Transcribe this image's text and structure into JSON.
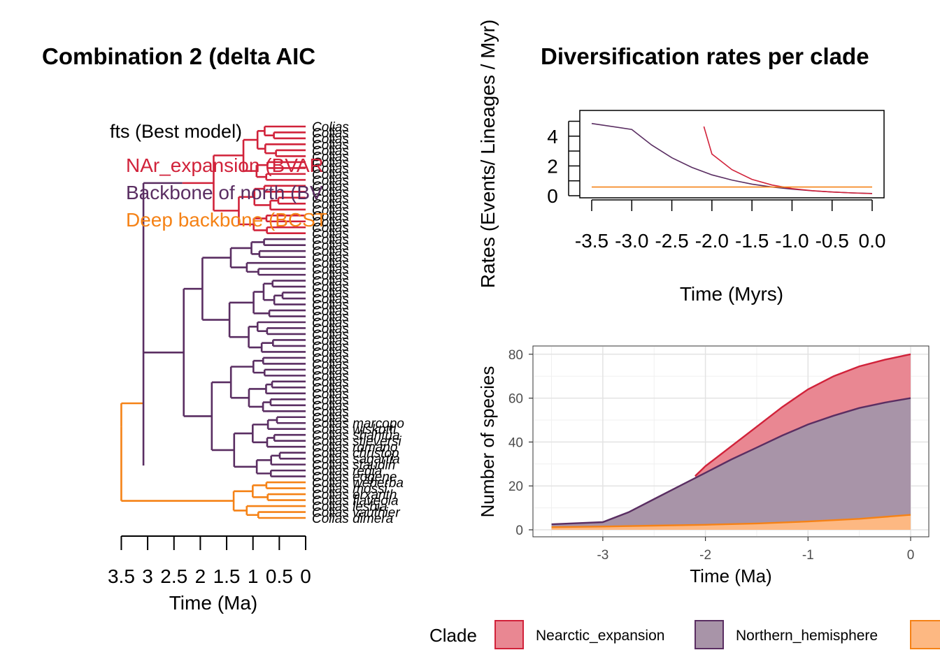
{
  "colors": {
    "nearctic": "#d1223a",
    "northern": "#5a2e62",
    "deep": "#f58216",
    "nearctic_fill": "#e98792",
    "northern_fill": "#a894a8",
    "deep_fill": "#fdb882"
  },
  "left_panel": {
    "title": "Combination 2 (delta AIC",
    "legend_header": "fts (Best model)",
    "legend_items": [
      {
        "label": "NAr_expansion (BVAR",
        "color": "#d1223a"
      },
      {
        "label": "Backbone of north (BV",
        "color": "#5a2e62"
      },
      {
        "label": "Deep backbone (BCST",
        "color": "#f58216"
      }
    ],
    "xlabel": "Time (Ma)",
    "ticks": [
      "3.5",
      "3",
      "2.5",
      "2",
      "1.5",
      "1",
      "0.5",
      "0"
    ],
    "tip_label": "Colias",
    "visible_tip_names": [
      "Colias marcopo",
      "Colias wiskotti",
      "Colias shahfua",
      "Colias stieversi",
      "Colias romano",
      "Colias christop",
      "Colias sagartia",
      "Colias staudin",
      "Colias regia",
      "Colias eogene",
      "Colias weberba",
      "Colias mossi",
      "Colias erxanth",
      "Colias flaveola",
      "Colias lesbia",
      "Colias vauthier",
      "Colias dimera"
    ]
  },
  "chart_data": [
    {
      "type": "line",
      "title": "Diversification rates per clade",
      "xlabel": "Time (Myrs)",
      "ylabel": "Rates (Events/ Lineages / Myr)",
      "xlim": [
        -3.5,
        0
      ],
      "ylim": [
        0,
        5
      ],
      "x_ticks": [
        "-3.5",
        "-3.0",
        "-2.5",
        "-2.0",
        "-1.5",
        "-1.0",
        "-0.5",
        "0.0"
      ],
      "y_ticks": [
        "0",
        "2",
        "4"
      ],
      "series": [
        {
          "color": "#5a2e62",
          "points": [
            [
              -3.5,
              4.85
            ],
            [
              -3.0,
              4.45
            ],
            [
              -2.75,
              3.4
            ],
            [
              -2.5,
              2.55
            ],
            [
              -2.25,
              1.9
            ],
            [
              -2.0,
              1.4
            ],
            [
              -1.75,
              1.05
            ],
            [
              -1.5,
              0.78
            ],
            [
              -1.25,
              0.58
            ],
            [
              -1.0,
              0.44
            ],
            [
              -0.75,
              0.33
            ],
            [
              -0.5,
              0.25
            ],
            [
              -0.25,
              0.19
            ],
            [
              0.0,
              0.15
            ]
          ]
        },
        {
          "color": "#d1223a",
          "points": [
            [
              -2.1,
              4.65
            ],
            [
              -2.0,
              2.8
            ],
            [
              -1.75,
              1.75
            ],
            [
              -1.5,
              1.1
            ],
            [
              -1.25,
              0.72
            ],
            [
              -1.0,
              0.48
            ],
            [
              -0.75,
              0.34
            ],
            [
              -0.5,
              0.25
            ],
            [
              -0.25,
              0.19
            ],
            [
              0.0,
              0.14
            ]
          ]
        },
        {
          "color": "#f58216",
          "points": [
            [
              -3.5,
              0.58
            ],
            [
              0.0,
              0.58
            ]
          ]
        }
      ]
    },
    {
      "type": "area",
      "xlabel": "Time (Ma)",
      "ylabel": "Number of species",
      "xlim": [
        -3.5,
        0.18
      ],
      "ylim": [
        -2.5,
        82
      ],
      "x_ticks": [
        -3,
        -2,
        -1,
        0
      ],
      "y_ticks": [
        0,
        20,
        40,
        60,
        80
      ],
      "legend_title": "Clade",
      "legend_position": "bottom",
      "series": [
        {
          "name": "Nearctic_expansion",
          "color": "#d1223a",
          "fill": "#e98792",
          "points": [
            [
              -2.1,
              24.5
            ],
            [
              -2.0,
              29
            ],
            [
              -1.75,
              38
            ],
            [
              -1.5,
              47
            ],
            [
              -1.25,
              56
            ],
            [
              -1.0,
              64
            ],
            [
              -0.75,
              70
            ],
            [
              -0.5,
              74.5
            ],
            [
              -0.25,
              77.5
            ],
            [
              0.0,
              80
            ]
          ]
        },
        {
          "name": "Northern_hemisphere",
          "color": "#5a2e62",
          "fill": "#a894a8",
          "points": [
            [
              -3.5,
              2.5
            ],
            [
              -3.0,
              3.5
            ],
            [
              -2.75,
              8
            ],
            [
              -2.5,
              14
            ],
            [
              -2.25,
              20
            ],
            [
              -2.0,
              26
            ],
            [
              -1.75,
              32
            ],
            [
              -1.5,
              37.5
            ],
            [
              -1.25,
              43
            ],
            [
              -1.0,
              48
            ],
            [
              -0.75,
              52
            ],
            [
              -0.5,
              55.5
            ],
            [
              -0.25,
              58
            ],
            [
              0.0,
              60
            ]
          ]
        },
        {
          "name": "",
          "color": "#f58216",
          "fill": "#fdb882",
          "points": [
            [
              -3.5,
              1.2
            ],
            [
              -3.0,
              1.5
            ],
            [
              -2.5,
              1.9
            ],
            [
              -2.0,
              2.3
            ],
            [
              -1.5,
              2.9
            ],
            [
              -1.0,
              3.8
            ],
            [
              -0.5,
              5.0
            ],
            [
              0.0,
              6.8
            ]
          ]
        }
      ]
    }
  ]
}
